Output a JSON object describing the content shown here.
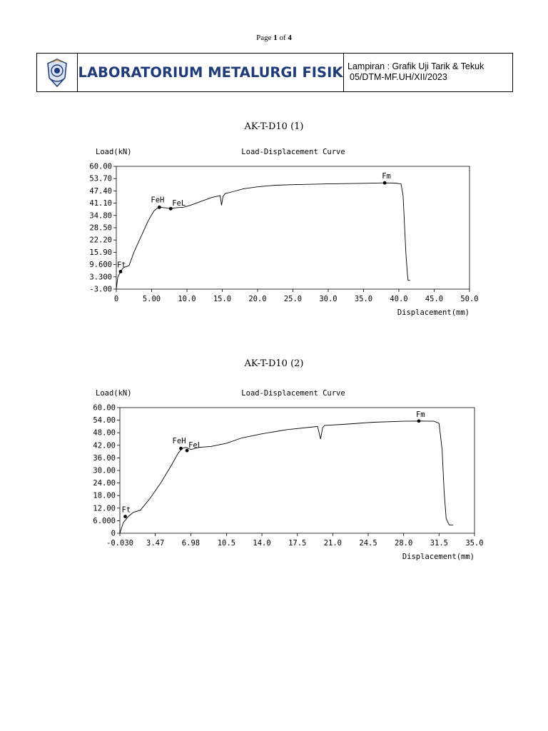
{
  "page": {
    "label": "Page",
    "current": "1",
    "of": "of",
    "total": "4"
  },
  "header": {
    "title": "LABORATORIUM METALURGI FISIK",
    "info_line1": "Lampiran : Grafik Uji Tarik & Tekuk",
    "info_line2": "05/DTM-MF.UH/XII/2023",
    "logo_icon": "university-emblem-icon",
    "accent_color": "#1f3b7a"
  },
  "chart_data": [
    {
      "type": "line",
      "heading": "AK-T-D10 (1)",
      "title": "Load-Displacement Curve",
      "ylabel": "Load(kN)",
      "xlabel": "Displacement(mm)",
      "xlim": [
        0,
        50
      ],
      "ylim": [
        -3,
        60
      ],
      "xticks": [
        0,
        5,
        10,
        15,
        20,
        25,
        30,
        35,
        40,
        45,
        50
      ],
      "xtick_labels": [
        "0",
        "5.00",
        "10.0",
        "15.0",
        "20.0",
        "25.0",
        "30.0",
        "35.0",
        "40.0",
        "45.0",
        "50.0"
      ],
      "yticks": [
        -3,
        3.3,
        9.6,
        15.9,
        22.2,
        28.5,
        34.8,
        41.1,
        47.4,
        53.7,
        60
      ],
      "ytick_labels": [
        "-3.00",
        "3.300",
        "9.600",
        "15.90",
        "22.20",
        "28.50",
        "34.80",
        "41.10",
        "47.40",
        "53.70",
        "60.00"
      ],
      "series": [
        {
          "x": [
            0,
            0.2,
            0.6,
            1.0,
            1.8,
            2.5,
            3.5,
            4.5,
            5.3,
            5.8,
            6.2,
            7.0,
            7.7,
            8.5,
            9.5,
            10.5,
            12.0,
            13.5,
            14.7,
            14.9,
            15.1,
            15.4,
            16.5,
            18.0,
            20.0,
            22.5,
            25.0,
            30.0,
            35.0,
            38.0,
            39.5,
            40.3,
            40.6,
            40.8,
            41.0,
            41.2,
            41.3,
            41.6
          ],
          "y": [
            -3,
            3,
            6,
            8,
            9,
            16,
            24,
            32,
            37,
            38.5,
            39,
            38.7,
            38.3,
            38.8,
            39,
            40,
            42,
            44,
            45,
            40,
            44.5,
            46,
            47,
            48.5,
            49.5,
            50.3,
            50.6,
            51,
            51.3,
            51.5,
            51.4,
            51,
            45,
            30,
            15,
            5,
            1.5,
            1.5
          ]
        }
      ],
      "markers": [
        {
          "label": "Ft",
          "x": 0.6,
          "y": 6
        },
        {
          "label": "FeH",
          "x": 6.1,
          "y": 39
        },
        {
          "label": "FeL",
          "x": 7.7,
          "y": 38.3
        },
        {
          "label": "Fm",
          "x": 38.0,
          "y": 51.5
        }
      ]
    },
    {
      "type": "line",
      "heading": "AK-T-D10 (2)",
      "title": "Load-Displacement Curve",
      "ylabel": "Load(kN)",
      "xlabel": "Displacement(mm)",
      "xlim": [
        -0.03,
        35
      ],
      "ylim": [
        0,
        60
      ],
      "xticks": [
        -0.03,
        3.47,
        6.98,
        10.5,
        14,
        17.5,
        21,
        24.5,
        28,
        31.5,
        35
      ],
      "xtick_labels": [
        "-0.030",
        "3.47",
        "6.98",
        "10.5",
        "14.0",
        "17.5",
        "21.0",
        "24.5",
        "28.0",
        "31.5",
        "35.0"
      ],
      "yticks": [
        0,
        6,
        12,
        18,
        24,
        30,
        36,
        42,
        48,
        54,
        60
      ],
      "ytick_labels": [
        "0",
        "6.000",
        "12.00",
        "18.00",
        "24.00",
        "30.00",
        "36.00",
        "42.00",
        "48.00",
        "54.00",
        "60.00"
      ],
      "series": [
        {
          "x": [
            -0.03,
            0.3,
            0.8,
            1.3,
            2.0,
            3.0,
            4.0,
            5.0,
            5.7,
            6.1,
            6.5,
            7.0,
            7.8,
            9.0,
            10.5,
            12.0,
            14.0,
            16.5,
            19.5,
            19.8,
            20.0,
            20.2,
            22.0,
            25.0,
            28.0,
            29.5,
            31.0,
            31.5,
            31.8,
            32.0,
            32.2,
            32.5,
            32.9
          ],
          "y": [
            0,
            5,
            8,
            10,
            11,
            17,
            24,
            32,
            38,
            40.5,
            41,
            40,
            41,
            41.5,
            43,
            45.5,
            47.5,
            49.5,
            51,
            45,
            50.5,
            51.5,
            52,
            53,
            53.5,
            53.6,
            53.5,
            52.5,
            40,
            20,
            7,
            4,
            4
          ]
        }
      ],
      "markers": [
        {
          "label": "Ft",
          "x": 0.5,
          "y": 8
        },
        {
          "label": "FeH",
          "x": 6.0,
          "y": 40.5
        },
        {
          "label": "FeL",
          "x": 6.6,
          "y": 39.5
        },
        {
          "label": "Fm",
          "x": 29.5,
          "y": 53.6
        }
      ]
    }
  ]
}
